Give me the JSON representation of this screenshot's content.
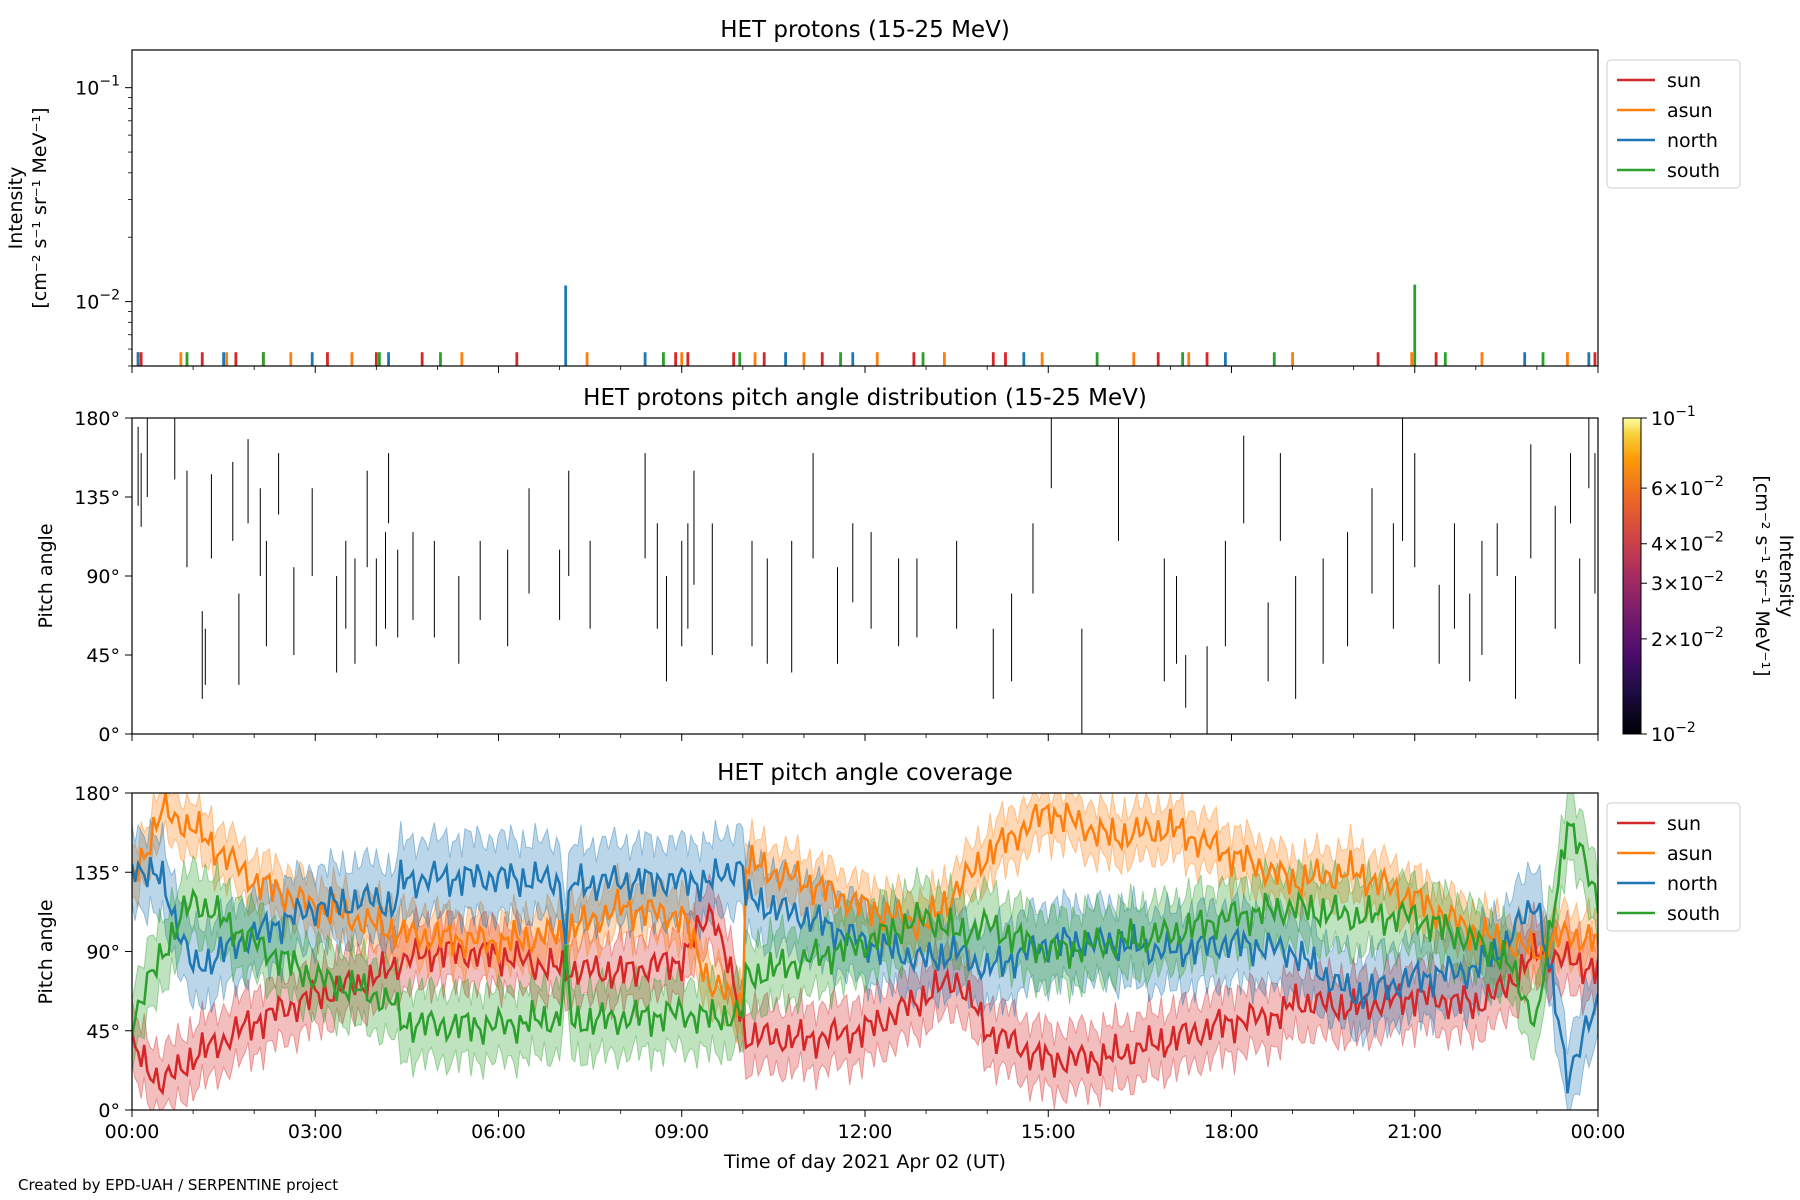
{
  "credit": "Created by EPD-UAH / SERPENTINE project",
  "xlabel": "Time of day 2021 Apr 02 (UT)",
  "x_ticks": [
    "00:00",
    "03:00",
    "06:00",
    "09:00",
    "12:00",
    "15:00",
    "18:00",
    "21:00",
    "00:00"
  ],
  "colors": {
    "sun": "#d62728",
    "asun": "#ff7f0e",
    "north": "#1f77b4",
    "south": "#2ca02c"
  },
  "chart_data": [
    {
      "type": "bar",
      "title": "HET protons (15-25 MeV)",
      "ylabel_line1": "Intensity",
      "ylabel_line2": "[cm⁻² s⁻¹ sr⁻¹ MeV⁻¹]",
      "yscale": "log",
      "ylim": [
        0.005,
        0.15
      ],
      "y_ticks": [
        {
          "base": "10",
          "exp": "−1",
          "value": 0.1
        },
        {
          "base": "10",
          "exp": "−2",
          "value": 0.01
        }
      ],
      "xlim_hours": [
        0,
        24
      ],
      "legend": {
        "placement": "outside-right",
        "entries": [
          "sun",
          "asun",
          "north",
          "south"
        ]
      },
      "series": [
        {
          "name": "sun",
          "spikes": [
            [
              0.15,
              0.0058
            ],
            [
              1.15,
              0.0058
            ],
            [
              1.7,
              0.0058
            ],
            [
              2.15,
              0.0058
            ],
            [
              3.2,
              0.0058
            ],
            [
              4,
              0.0058
            ],
            [
              4.75,
              0.0058
            ],
            [
              6.3,
              0.0058
            ],
            [
              8.9,
              0.0058
            ],
            [
              9.1,
              0.0058
            ],
            [
              9.85,
              0.0058
            ],
            [
              10.35,
              0.0058
            ],
            [
              11.3,
              0.0058
            ],
            [
              12.8,
              0.0058
            ],
            [
              14.1,
              0.0058
            ],
            [
              14.3,
              0.0058
            ],
            [
              16.8,
              0.0058
            ],
            [
              17.6,
              0.0058
            ],
            [
              20.4,
              0.0058
            ],
            [
              21.35,
              0.0058
            ],
            [
              23.95,
              0.0058
            ]
          ]
        },
        {
          "name": "asun",
          "spikes": [
            [
              0.1,
              0.0058
            ],
            [
              0.8,
              0.0058
            ],
            [
              1.55,
              0.0058
            ],
            [
              2.6,
              0.0058
            ],
            [
              3.6,
              0.0058
            ],
            [
              5.4,
              0.0058
            ],
            [
              7.45,
              0.0058
            ],
            [
              9.0,
              0.0058
            ],
            [
              10.2,
              0.0058
            ],
            [
              11.0,
              0.0058
            ],
            [
              12.2,
              0.0058
            ],
            [
              13.3,
              0.0058
            ],
            [
              14.9,
              0.0058
            ],
            [
              16.4,
              0.0058
            ],
            [
              17.3,
              0.0058
            ],
            [
              19.0,
              0.0058
            ],
            [
              20.95,
              0.0058
            ],
            [
              22.1,
              0.0058
            ],
            [
              23.5,
              0.0058
            ]
          ]
        },
        {
          "name": "north",
          "spikes": [
            [
              0.1,
              0.0058
            ],
            [
              1.5,
              0.0058
            ],
            [
              2.95,
              0.0058
            ],
            [
              4.2,
              0.0058
            ],
            [
              7.1,
              0.0119
            ],
            [
              8.4,
              0.0058
            ],
            [
              10.7,
              0.0058
            ],
            [
              11.8,
              0.0058
            ],
            [
              14.6,
              0.0058
            ],
            [
              17.9,
              0.0058
            ],
            [
              22.8,
              0.0058
            ],
            [
              23.85,
              0.0058
            ]
          ]
        },
        {
          "name": "south",
          "spikes": [
            [
              0.9,
              0.0058
            ],
            [
              2.15,
              0.0058
            ],
            [
              4.05,
              0.0058
            ],
            [
              5.05,
              0.0058
            ],
            [
              8.7,
              0.0058
            ],
            [
              9.95,
              0.0058
            ],
            [
              11.6,
              0.0058
            ],
            [
              12.95,
              0.0058
            ],
            [
              15.8,
              0.0058
            ],
            [
              17.2,
              0.0058
            ],
            [
              18.7,
              0.0058
            ],
            [
              21.0,
              0.012
            ],
            [
              21.5,
              0.0058
            ],
            [
              23.1,
              0.0058
            ]
          ]
        }
      ]
    },
    {
      "type": "heatmap",
      "title": "HET protons pitch angle distribution (15-25 MeV)",
      "ylabel": "Pitch angle",
      "ylim": [
        0,
        180
      ],
      "y_ticks": [
        "0°",
        "45°",
        "90°",
        "135°",
        "180°"
      ],
      "xlim_hours": [
        0,
        24
      ],
      "colorbar": {
        "label_line1": "Intensity",
        "label_line2": "[cm⁻² s⁻¹ sr⁻¹ MeV⁻¹]",
        "scale": "log",
        "range": [
          0.01,
          0.1
        ],
        "colormap": "inferno",
        "ticks": [
          {
            "value": 0.1,
            "mant": "",
            "exp": "−1"
          },
          {
            "value": 0.06,
            "mant": "6×",
            "exp": "−2"
          },
          {
            "value": 0.04,
            "mant": "4×",
            "exp": "−2"
          },
          {
            "value": 0.03,
            "mant": "3×",
            "exp": "−2"
          },
          {
            "value": 0.02,
            "mant": "2×",
            "exp": "−2"
          },
          {
            "value": 0.01,
            "mant": "",
            "exp": "−2"
          }
        ]
      },
      "segments": [
        [
          0.1,
          130,
          175
        ],
        [
          0.15,
          118,
          160
        ],
        [
          0.25,
          135,
          180
        ],
        [
          0.7,
          145,
          180
        ],
        [
          0.9,
          95,
          150
        ],
        [
          1.15,
          20,
          70
        ],
        [
          1.2,
          28,
          60
        ],
        [
          1.3,
          100,
          148
        ],
        [
          1.75,
          28,
          80
        ],
        [
          1.65,
          110,
          155
        ],
        [
          1.9,
          120,
          168
        ],
        [
          2.1,
          90,
          140
        ],
        [
          2.2,
          50,
          110
        ],
        [
          2.4,
          125,
          160
        ],
        [
          2.65,
          45,
          95
        ],
        [
          2.95,
          90,
          140
        ],
        [
          3.35,
          35,
          90
        ],
        [
          3.5,
          60,
          110
        ],
        [
          3.65,
          40,
          100
        ],
        [
          3.85,
          95,
          150
        ],
        [
          4.0,
          50,
          100
        ],
        [
          4.15,
          60,
          115
        ],
        [
          4.2,
          120,
          160
        ],
        [
          4.35,
          55,
          105
        ],
        [
          4.6,
          65,
          115
        ],
        [
          4.95,
          55,
          110
        ],
        [
          5.35,
          40,
          90
        ],
        [
          5.7,
          65,
          110
        ],
        [
          6.15,
          50,
          105
        ],
        [
          6.5,
          80,
          140
        ],
        [
          7.0,
          65,
          105
        ],
        [
          7.15,
          90,
          150
        ],
        [
          7.5,
          60,
          110
        ],
        [
          8.4,
          100,
          160
        ],
        [
          8.6,
          60,
          120
        ],
        [
          8.75,
          30,
          90
        ],
        [
          9.0,
          50,
          110
        ],
        [
          9.1,
          60,
          120
        ],
        [
          9.2,
          85,
          150
        ],
        [
          9.5,
          45,
          120
        ],
        [
          10.15,
          50,
          110
        ],
        [
          10.4,
          40,
          100
        ],
        [
          10.8,
          35,
          110
        ],
        [
          11.15,
          100,
          160
        ],
        [
          11.55,
          40,
          95
        ],
        [
          11.8,
          75,
          120
        ],
        [
          12.1,
          60,
          115
        ],
        [
          12.55,
          50,
          100
        ],
        [
          12.85,
          55,
          100
        ],
        [
          13.5,
          60,
          110
        ],
        [
          14.1,
          20,
          60
        ],
        [
          14.4,
          30,
          80
        ],
        [
          14.75,
          80,
          120
        ],
        [
          15.05,
          140,
          180
        ],
        [
          15.55,
          0,
          60
        ],
        [
          16.15,
          110,
          180
        ],
        [
          16.9,
          30,
          100
        ],
        [
          17.1,
          40,
          90
        ],
        [
          17.25,
          15,
          45
        ],
        [
          17.6,
          0,
          50
        ],
        [
          17.9,
          50,
          110
        ],
        [
          18.2,
          120,
          170
        ],
        [
          18.6,
          30,
          75
        ],
        [
          18.8,
          110,
          160
        ],
        [
          19.05,
          20,
          90
        ],
        [
          19.5,
          40,
          100
        ],
        [
          19.9,
          50,
          115
        ],
        [
          20.3,
          80,
          140
        ],
        [
          20.65,
          60,
          120
        ],
        [
          20.8,
          110,
          180
        ],
        [
          21.0,
          95,
          160
        ],
        [
          21.4,
          40,
          85
        ],
        [
          21.65,
          60,
          120
        ],
        [
          21.9,
          30,
          80
        ],
        [
          22.1,
          45,
          110
        ],
        [
          22.35,
          90,
          120
        ],
        [
          22.65,
          20,
          90
        ],
        [
          22.9,
          100,
          165
        ],
        [
          23.3,
          60,
          130
        ],
        [
          23.55,
          120,
          160
        ],
        [
          23.7,
          40,
          100
        ],
        [
          23.85,
          140,
          180
        ],
        [
          23.95,
          80,
          160
        ]
      ]
    },
    {
      "type": "line",
      "title": "HET pitch angle coverage",
      "ylabel": "Pitch angle",
      "ylim": [
        0,
        180
      ],
      "y_ticks": [
        "0°",
        "45°",
        "90°",
        "135°",
        "180°"
      ],
      "xlim_hours": [
        0,
        24
      ],
      "legend": {
        "placement": "outside-right",
        "entries": [
          "sun",
          "asun",
          "north",
          "south"
        ]
      },
      "series": [
        {
          "name": "sun",
          "halfwidth": 18,
          "x": [
            0,
            0.5,
            1,
            2,
            3,
            4,
            4.4,
            5,
            6,
            7,
            8,
            9,
            9.5,
            10,
            10.05,
            11,
            12,
            12.5,
            13,
            13.5,
            14,
            15,
            16,
            17,
            18,
            18.9,
            19,
            20,
            21,
            22,
            22.5,
            23,
            23.5,
            24
          ],
          "y": [
            35,
            15,
            30,
            50,
            65,
            75,
            85,
            90,
            88,
            80,
            78,
            85,
            115,
            50,
            42,
            40,
            45,
            55,
            65,
            75,
            45,
            28,
            30,
            40,
            50,
            55,
            62,
            58,
            65,
            60,
            70,
            90,
            85,
            80
          ]
        },
        {
          "name": "asun",
          "halfwidth": 15,
          "x": [
            0,
            0.5,
            1,
            2,
            3,
            4,
            4.4,
            5,
            6,
            7,
            8,
            9,
            9.5,
            10,
            10.05,
            11,
            12,
            13,
            13.5,
            14,
            15,
            16,
            17,
            18,
            19,
            20,
            21,
            22,
            22.5,
            23,
            23.5,
            24
          ],
          "y": [
            130,
            170,
            160,
            130,
            115,
            105,
            100,
            98,
            95,
            100,
            115,
            110,
            70,
            60,
            140,
            130,
            115,
            105,
            125,
            145,
            170,
            155,
            160,
            145,
            130,
            135,
            120,
            100,
            95,
            90,
            100,
            95
          ]
        },
        {
          "name": "north",
          "halfwidth": 22,
          "x": [
            0,
            0.5,
            1,
            2,
            3,
            4,
            4.3,
            4.4,
            5,
            6,
            7,
            7.1,
            7.2,
            8,
            9,
            9.5,
            10,
            10.05,
            11,
            12,
            13,
            13.5,
            14,
            15,
            16,
            17,
            18,
            19,
            20,
            21,
            22,
            22.5,
            23,
            23.5,
            24
          ],
          "y": [
            140,
            130,
            80,
            100,
            115,
            120,
            115,
            130,
            132,
            132,
            130,
            100,
            128,
            130,
            130,
            130,
            140,
            120,
            110,
            95,
            85,
            90,
            80,
            95,
            95,
            90,
            95,
            90,
            65,
            75,
            80,
            95,
            120,
            20,
            60
          ]
        },
        {
          "name": "south",
          "halfwidth": 20,
          "x": [
            0,
            0.5,
            1,
            2,
            3,
            4,
            4.3,
            4.4,
            5,
            6,
            7,
            7.1,
            7.2,
            8,
            9,
            9.5,
            10,
            10.05,
            11,
            12,
            13,
            13.5,
            14,
            15,
            16,
            17,
            18,
            19,
            20,
            21,
            22,
            22.5,
            23,
            23.5,
            24
          ],
          "y": [
            50,
            90,
            120,
            95,
            75,
            65,
            60,
            50,
            48,
            48,
            52,
            85,
            50,
            52,
            55,
            52,
            55,
            75,
            85,
            95,
            110,
            100,
            105,
            90,
            95,
            100,
            110,
            115,
            110,
            110,
            95,
            85,
            50,
            165,
            120
          ]
        }
      ]
    }
  ]
}
